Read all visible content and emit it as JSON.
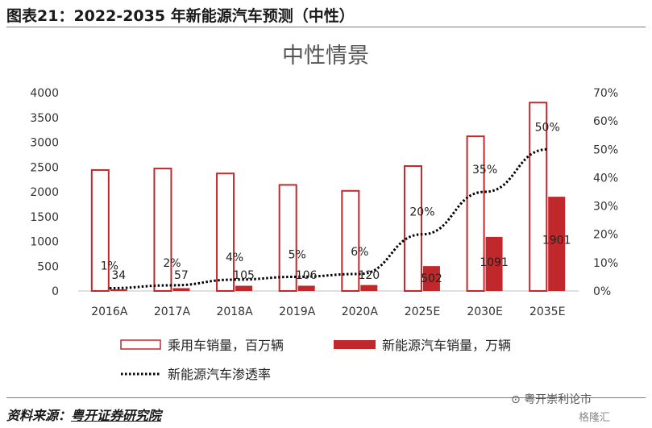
{
  "figure_title": "图表21：2022-2035 年新能源汽车预测（中性）",
  "source_prefix": "资料来源：",
  "source_name": "粤开证券研究院",
  "watermark": "粤开崇利论市",
  "watermark2": "格隆汇",
  "chart_data": {
    "type": "bar",
    "title": "中性情景",
    "categories": [
      "2016A",
      "2017A",
      "2018A",
      "2019A",
      "2020A",
      "2025E",
      "2030E",
      "2035E"
    ],
    "ylim": [
      0,
      4000
    ],
    "y_ticks": [
      "0",
      "500",
      "1000",
      "1500",
      "2000",
      "2500",
      "3000",
      "3500",
      "4000"
    ],
    "y2lim": [
      0,
      70
    ],
    "y2_ticks": [
      "0%",
      "10%",
      "20%",
      "30%",
      "40%",
      "50%",
      "60%",
      "70%"
    ],
    "series": [
      {
        "name": "乘用车销量，百万辆",
        "kind": "bar",
        "style": "outline",
        "color": "#c0282c",
        "values": [
          2440,
          2470,
          2370,
          2140,
          2020,
          2520,
          3120,
          3800
        ]
      },
      {
        "name": "新能源汽车销量，万辆",
        "kind": "bar",
        "style": "filled",
        "color": "#c0282c",
        "values": [
          34,
          57,
          105,
          106,
          120,
          502,
          1091,
          1901
        ],
        "labels": [
          "34",
          "57",
          "105",
          "106",
          "120",
          "502",
          "1091",
          "1901"
        ]
      },
      {
        "name": "新能源汽车渗透率",
        "kind": "line",
        "axis": "right",
        "style": "dotted",
        "color": "#000000",
        "values": [
          1,
          2,
          4,
          5,
          6,
          20,
          35,
          50
        ],
        "labels": [
          "1%",
          "2%",
          "4%",
          "5%",
          "6%",
          "20%",
          "35%",
          "50%"
        ]
      }
    ],
    "grid": false,
    "legend_position": "bottom"
  }
}
